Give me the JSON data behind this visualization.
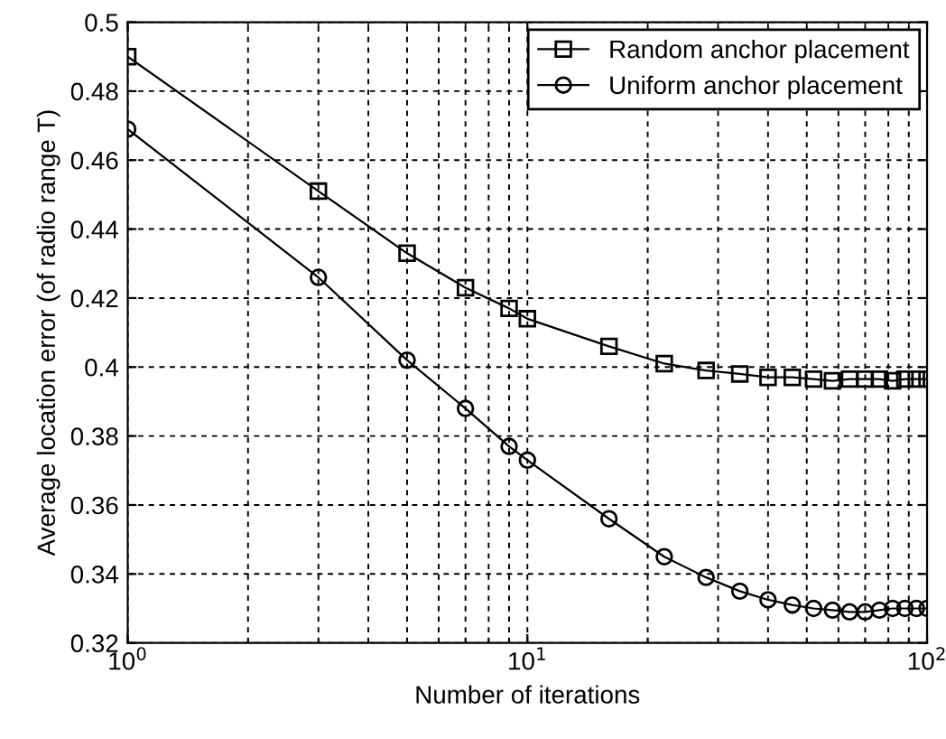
{
  "chart_data": {
    "type": "line",
    "xlabel": "Number of iterations",
    "ylabel": "Average location error (of radio range T)",
    "x": [
      1,
      3,
      5,
      7,
      9,
      10,
      16,
      22,
      28,
      34,
      40,
      46,
      52,
      58,
      64,
      70,
      76,
      82,
      88,
      94,
      100
    ],
    "series": [
      {
        "name": "Random anchor placement",
        "color": "#000000",
        "marker": "square",
        "values": [
          0.49,
          0.451,
          0.433,
          0.423,
          0.417,
          0.414,
          0.406,
          0.401,
          0.399,
          0.398,
          0.397,
          0.397,
          0.3965,
          0.396,
          0.3965,
          0.3965,
          0.3965,
          0.396,
          0.3965,
          0.3965,
          0.3965
        ]
      },
      {
        "name": "Uniform anchor placement",
        "color": "#000000",
        "marker": "circle",
        "values": [
          0.469,
          0.426,
          0.402,
          0.388,
          0.377,
          0.373,
          0.356,
          0.345,
          0.339,
          0.335,
          0.3325,
          0.331,
          0.33,
          0.3295,
          0.329,
          0.329,
          0.3295,
          0.33,
          0.33,
          0.33,
          0.33
        ]
      }
    ],
    "log": "x",
    "xlim": [
      1,
      100
    ],
    "xticks": [
      {
        "value": 1,
        "label": "10$^{0}$"
      },
      {
        "value": 10,
        "label": "10$^{1}$"
      },
      {
        "value": 100,
        "label": "10$^{2}$"
      }
    ],
    "ylim": [
      0.32,
      0.5
    ],
    "yticks": [
      0.32,
      0.34,
      0.36,
      0.38,
      0.4,
      0.42,
      0.44,
      0.46,
      0.48,
      0.5
    ],
    "grid": true,
    "legend": "top right",
    "line_style": "solid"
  }
}
